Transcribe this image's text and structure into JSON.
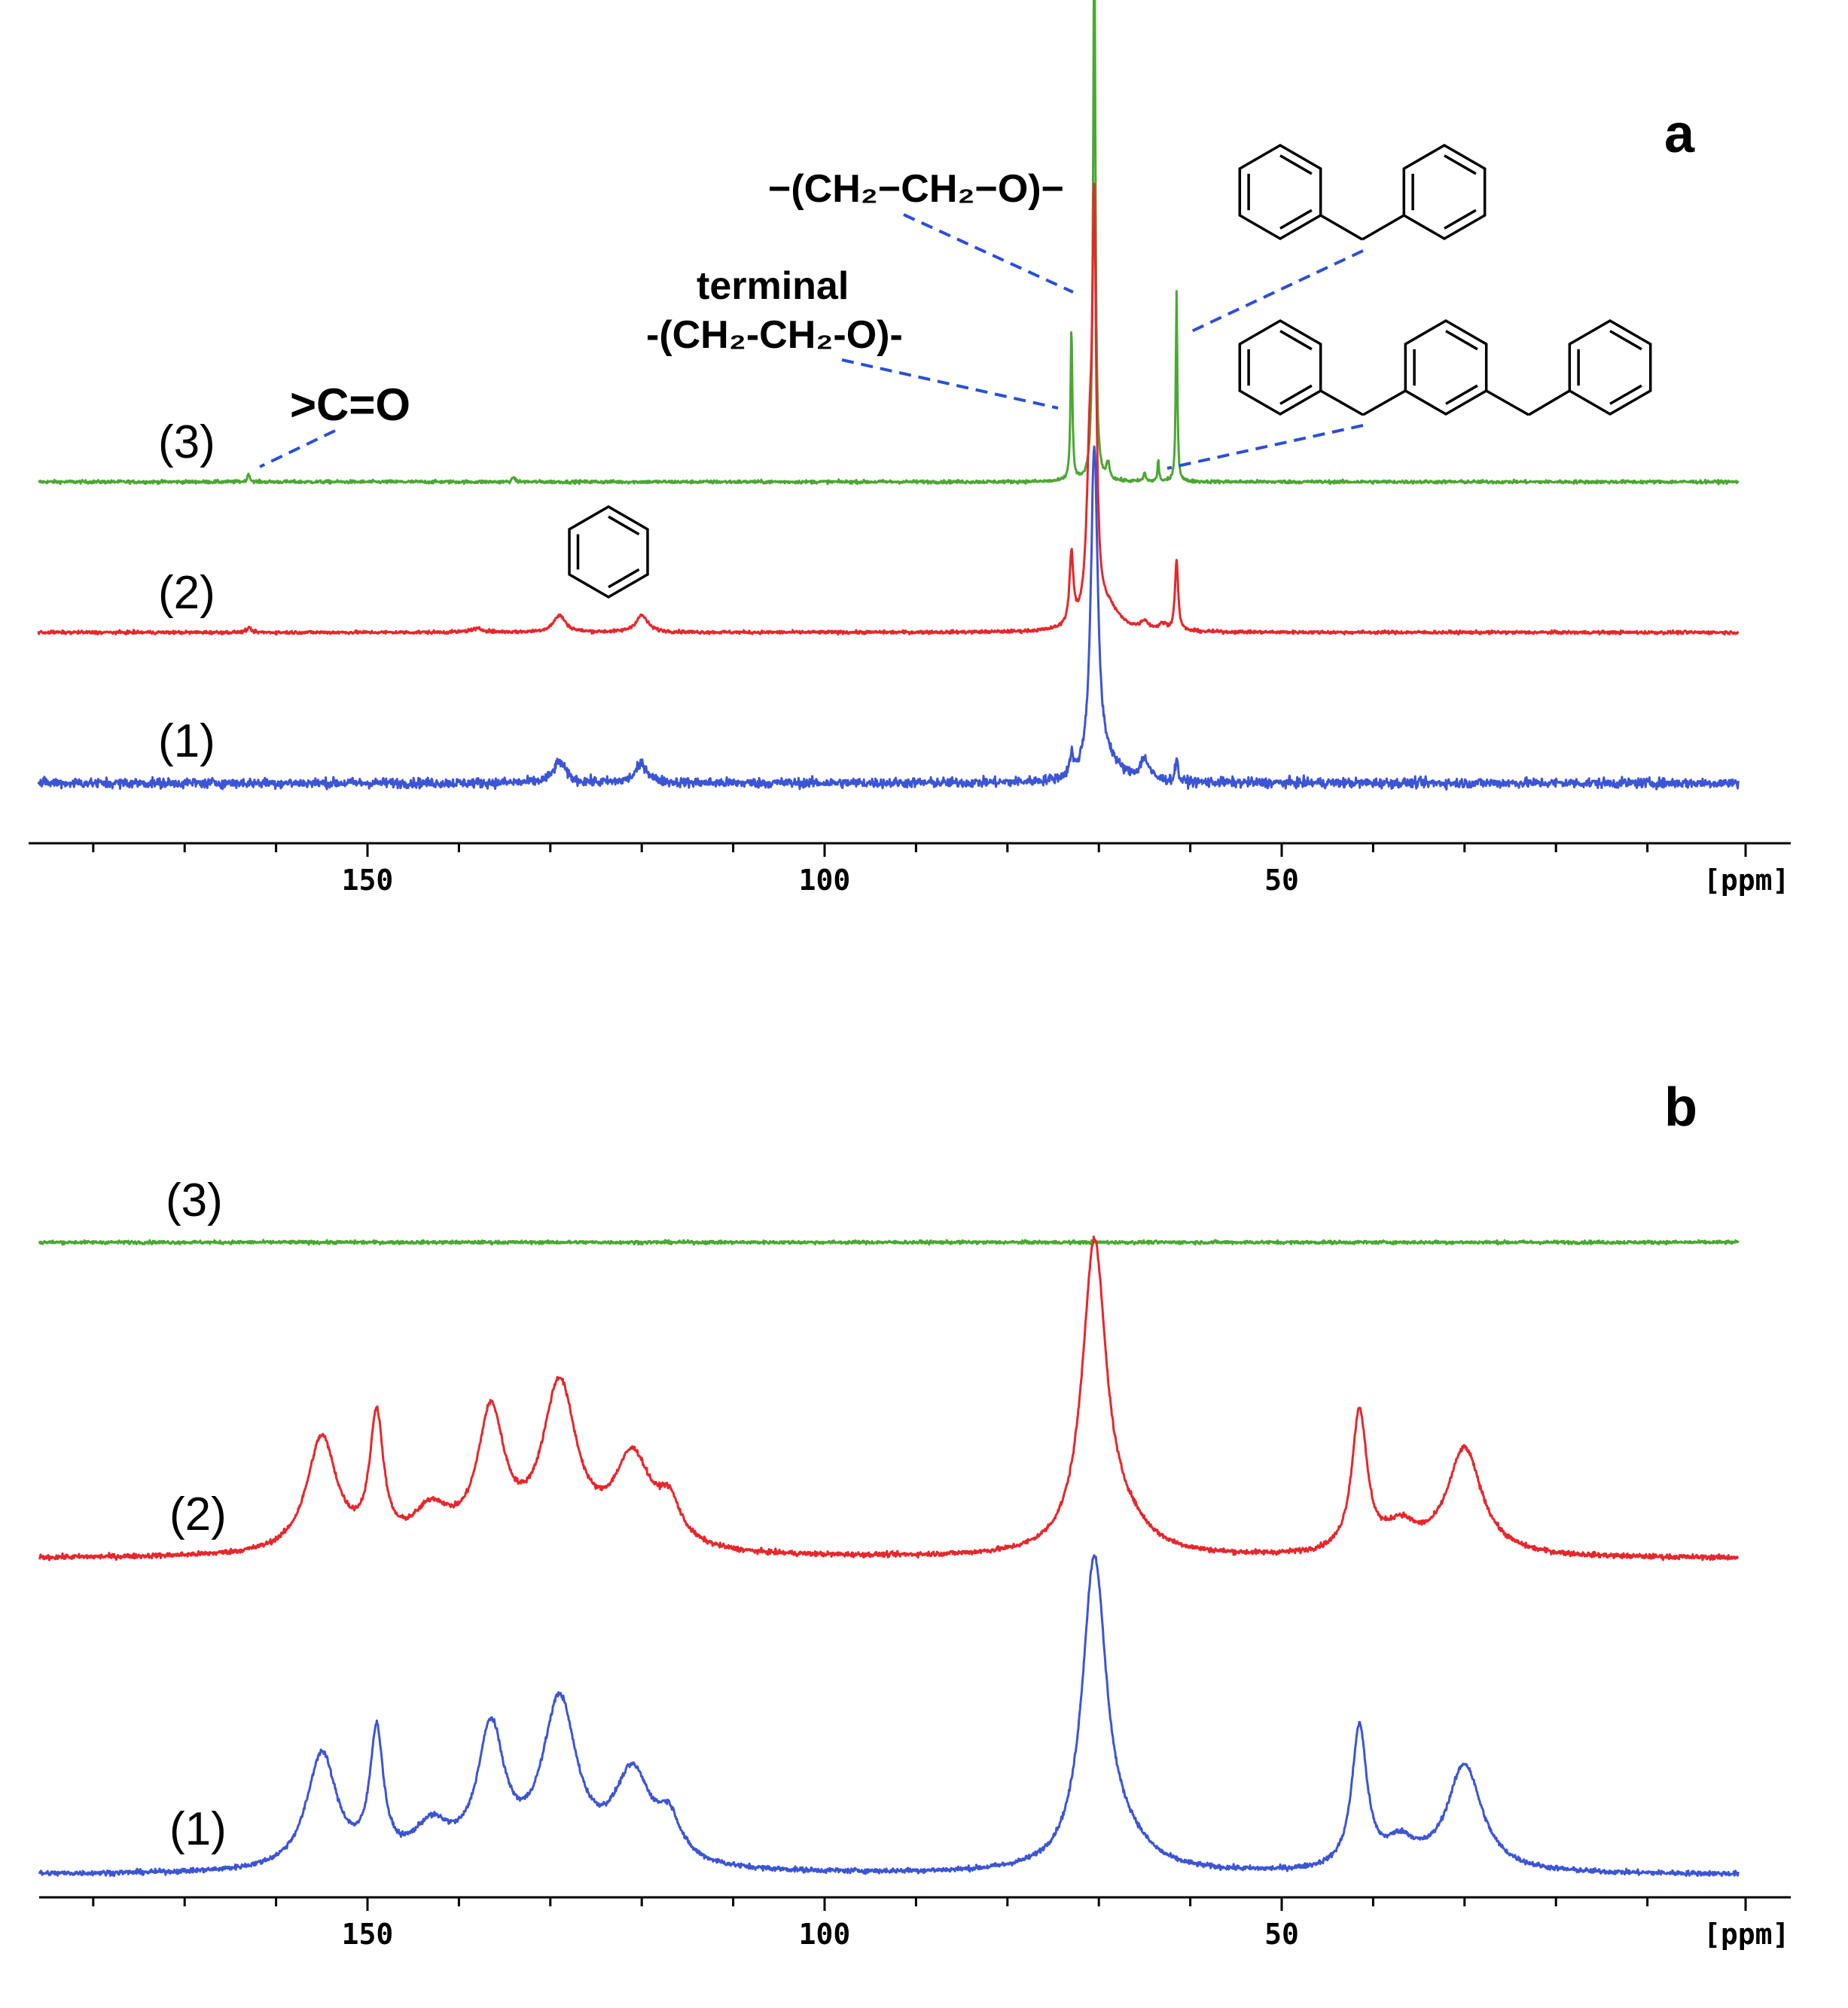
{
  "chart_data": [
    {
      "panel": "a",
      "type": "line",
      "xlabel": "[ppm]",
      "x_reversed": true,
      "xticks": [
        {
          "value": 150,
          "label": "150"
        },
        {
          "value": 100,
          "label": "100"
        },
        {
          "value": 50,
          "label": "50"
        }
      ],
      "xlim": [
        186,
        0
      ],
      "traces": [
        {
          "label": "(3)",
          "color": "#4aa832",
          "noise": 0.004,
          "peaks": [
            [
              163,
              0.02,
              0.15
            ],
            [
              134,
              0.012,
              0.15
            ],
            [
              73,
              0.36,
              0.12
            ],
            [
              70.5,
              1.3,
              0.15
            ],
            [
              69,
              0.04,
              0.2
            ],
            [
              65,
              0.02,
              0.15
            ],
            [
              61.5,
              0.45,
              0.1
            ],
            [
              63.5,
              0.05,
              0.1
            ]
          ]
        },
        {
          "label": "(2)",
          "color": "#e8262b",
          "noise": 0.004,
          "peaks": [
            [
              163,
              0.01,
              0.3
            ],
            [
              138,
              0.008,
              1.0
            ],
            [
              129,
              0.04,
              0.8
            ],
            [
              120,
              0.04,
              0.8
            ],
            [
              73,
              0.17,
              0.25
            ],
            [
              71,
              0.35,
              0.4
            ],
            [
              70.5,
              0.9,
              0.25
            ],
            [
              69,
              0.05,
              1.5
            ],
            [
              65,
              0.02,
              0.5
            ],
            [
              63,
              0.015,
              0.5
            ],
            [
              61.5,
              0.17,
              0.2
            ]
          ]
        },
        {
          "label": "(1)",
          "color": "#3c55d6",
          "noise": 0.012,
          "peaks": [
            [
              129,
              0.05,
              0.8
            ],
            [
              120,
              0.045,
              0.8
            ],
            [
              73,
              0.05,
              0.2
            ],
            [
              70.5,
              0.78,
              0.45
            ],
            [
              69,
              0.04,
              1.5
            ],
            [
              65,
              0.05,
              0.6
            ],
            [
              61.5,
              0.06,
              0.15
            ]
          ]
        }
      ],
      "annotations": [
        {
          "id": "carbonyl",
          "text": ">C=O",
          "peak_ppm": 163
        },
        {
          "id": "peo-terminal-1",
          "text": "terminal",
          "peak_ppm": 73
        },
        {
          "id": "peo-terminal-2",
          "text": "-(CH₂-CH₂-O)-",
          "peak_ppm": 73
        },
        {
          "id": "peo-main",
          "text": "−(CH₂−CH₂−O)−",
          "peak_ppm": 70.5
        },
        {
          "id": "diphenylmethane",
          "text": "",
          "peak_ppm": 61.5
        },
        {
          "id": "dibenzylbenzene",
          "text": "",
          "peak_ppm": 63
        },
        {
          "id": "benzene",
          "text": "",
          "peak_ppm": 129
        }
      ]
    },
    {
      "panel": "b",
      "type": "line",
      "xlabel": "[ppm]",
      "x_reversed": true,
      "xticks": [
        {
          "value": 150,
          "label": "150"
        },
        {
          "value": 100,
          "label": "100"
        },
        {
          "value": 50,
          "label": "50"
        }
      ],
      "xlim": [
        186,
        0
      ],
      "traces": [
        {
          "label": "(3)",
          "color": "#4aa832",
          "noise": 0.004,
          "peaks": []
        },
        {
          "label": "(2)",
          "color": "#e8262b",
          "noise": 0.006,
          "peaks": [
            [
              155,
              0.27,
              2.0
            ],
            [
              149,
              0.3,
              0.9
            ],
            [
              143,
              0.09,
              2.5
            ],
            [
              136.5,
              0.31,
              1.8
            ],
            [
              129,
              0.38,
              2.3
            ],
            [
              121,
              0.21,
              2.5
            ],
            [
              117,
              0.09,
              1.5
            ],
            [
              70.5,
              0.72,
              1.6
            ],
            [
              67,
              0.05,
              3.0
            ],
            [
              41.5,
              0.33,
              1.0
            ],
            [
              37,
              0.06,
              2.0
            ],
            [
              30,
              0.25,
              2.3
            ]
          ]
        },
        {
          "label": "(1)",
          "color": "#3c55d6",
          "noise": 0.006,
          "peaks": [
            [
              155,
              0.27,
              2.0
            ],
            [
              149,
              0.3,
              0.9
            ],
            [
              143,
              0.09,
              2.5
            ],
            [
              136.5,
              0.31,
              1.8
            ],
            [
              129,
              0.38,
              2.3
            ],
            [
              121,
              0.21,
              2.5
            ],
            [
              117,
              0.09,
              1.5
            ],
            [
              70.5,
              0.72,
              1.6
            ],
            [
              67,
              0.05,
              3.0
            ],
            [
              41.5,
              0.33,
              1.0
            ],
            [
              37,
              0.06,
              2.0
            ],
            [
              30,
              0.25,
              2.3
            ]
          ]
        }
      ]
    }
  ]
}
